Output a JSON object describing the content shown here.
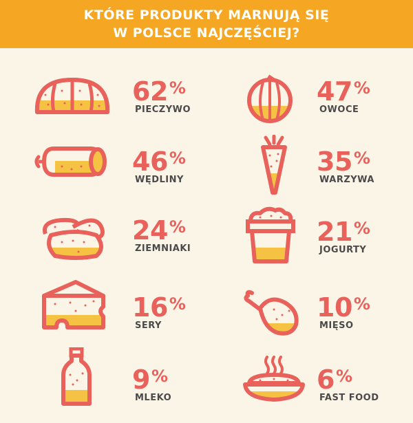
{
  "header": {
    "title_line1": "KTÓRE PRODUKTY MARNUJĄ SIĘ",
    "title_line2": "W POLSCE NAJCZĘŚCIEJ?"
  },
  "colors": {
    "header_bg": "#F5A623",
    "background": "#FBF5E8",
    "accent": "#E8615B",
    "fill": "#F6C244",
    "label": "#4A4A4A"
  },
  "items": [
    {
      "value": "62",
      "sign": "%",
      "label": "PIECZYWO",
      "icon": "bread-icon"
    },
    {
      "value": "47",
      "sign": "%",
      "label": "OWOCE",
      "icon": "apple-icon"
    },
    {
      "value": "46",
      "sign": "%",
      "label": "WĘDLINY",
      "icon": "sausage-icon"
    },
    {
      "value": "35",
      "sign": "%",
      "label": "WARZYWA",
      "icon": "carrot-icon"
    },
    {
      "value": "24",
      "sign": "%",
      "label": "ZIEMNIAKI",
      "icon": "potato-icon"
    },
    {
      "value": "21",
      "sign": "%",
      "label": "JOGURTY",
      "icon": "yogurt-icon"
    },
    {
      "value": "16",
      "sign": "%",
      "label": "SERY",
      "icon": "cheese-icon"
    },
    {
      "value": "10",
      "sign": "%",
      "label": "MIĘSO",
      "icon": "drumstick-icon"
    },
    {
      "value": "9",
      "sign": "%",
      "label": "MLEKO",
      "icon": "milk-icon"
    },
    {
      "value": "6",
      "sign": "%",
      "label": "FAST FOOD",
      "icon": "fast-food-icon"
    }
  ]
}
